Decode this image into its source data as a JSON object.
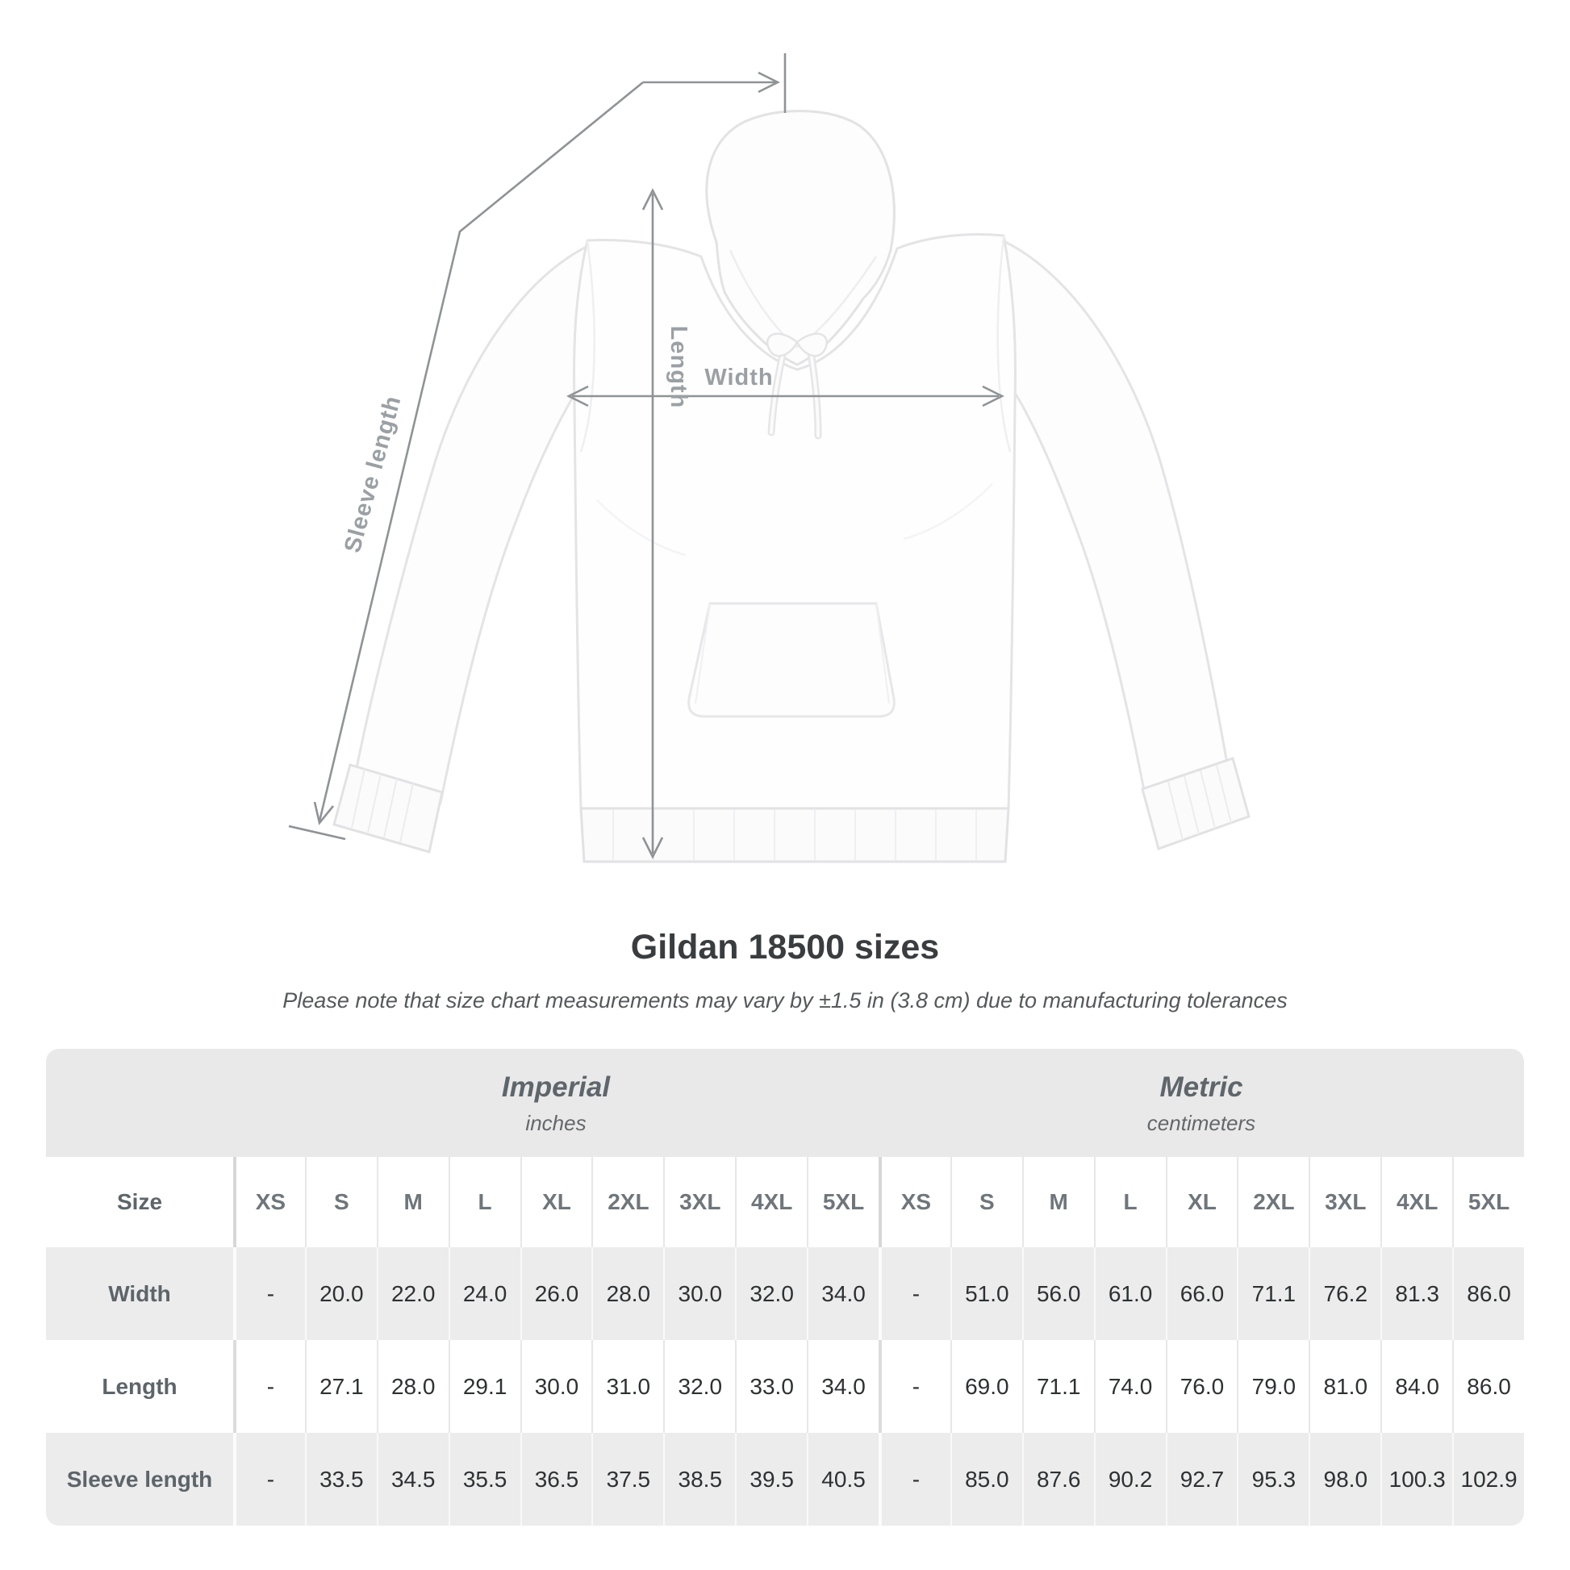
{
  "title": "Gildan 18500 sizes",
  "subtitle": "Please note that size chart measurements may vary by ±1.5 in (3.8 cm) due to manufacturing tolerances",
  "diagram": {
    "garment": "white pullover hoodie, front view",
    "labels": {
      "length": "Length",
      "width": "Width",
      "sleeve": "Sleeve length"
    }
  },
  "colors": {
    "measure_line": "#8f9396",
    "measure_label": "#9aa0a4",
    "band_gray": "#e9e9e9",
    "row_gray": "#ececec",
    "value_text": "#2e3133",
    "heading_text": "#5e666b",
    "title_text": "#3a3d3f"
  },
  "chart_data": {
    "type": "table",
    "title": "Gildan 18500 sizes",
    "groups": [
      {
        "label": "Imperial",
        "sublabel": "inches"
      },
      {
        "label": "Metric",
        "sublabel": "centimeters"
      }
    ],
    "size_label": "Size",
    "columns": [
      "XS",
      "S",
      "M",
      "L",
      "XL",
      "2XL",
      "3XL",
      "4XL",
      "5XL",
      "XS",
      "S",
      "M",
      "L",
      "XL",
      "2XL",
      "3XL",
      "4XL",
      "5XL"
    ],
    "rows": [
      {
        "label": "Width",
        "values": [
          "-",
          "20.0",
          "22.0",
          "24.0",
          "26.0",
          "28.0",
          "30.0",
          "32.0",
          "34.0",
          "-",
          "51.0",
          "56.0",
          "61.0",
          "66.0",
          "71.1",
          "76.2",
          "81.3",
          "86.0"
        ]
      },
      {
        "label": "Length",
        "values": [
          "-",
          "27.1",
          "28.0",
          "29.1",
          "30.0",
          "31.0",
          "32.0",
          "33.0",
          "34.0",
          "-",
          "69.0",
          "71.1",
          "74.0",
          "76.0",
          "79.0",
          "81.0",
          "84.0",
          "86.0"
        ]
      },
      {
        "label": "Sleeve length",
        "values": [
          "-",
          "33.5",
          "34.5",
          "35.5",
          "36.5",
          "37.5",
          "38.5",
          "39.5",
          "40.5",
          "-",
          "85.0",
          "87.6",
          "90.2",
          "92.7",
          "95.3",
          "98.0",
          "100.3",
          "102.9"
        ]
      }
    ]
  }
}
